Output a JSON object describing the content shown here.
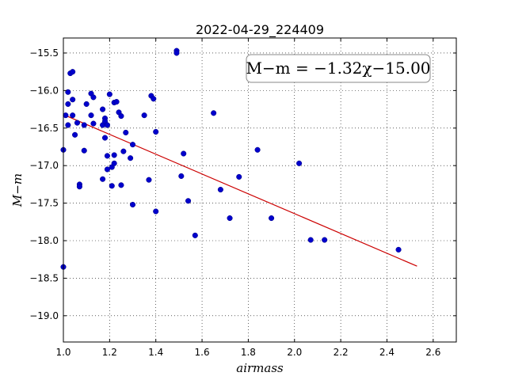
{
  "chart_data": {
    "type": "scatter",
    "title": "2022-04-29_224409",
    "xlabel": "airmass",
    "ylabel": "M−m",
    "xlim": [
      1.0,
      2.7
    ],
    "ylim": [
      -19.35,
      -15.3
    ],
    "y_inverted": true,
    "grid": true,
    "x_ticks": [
      1.0,
      1.2,
      1.4,
      1.6,
      1.8,
      2.0,
      2.2,
      2.4,
      2.6
    ],
    "x_tick_labels": [
      "1.0",
      "1.2",
      "1.4",
      "1.6",
      "1.8",
      "2.0",
      "2.2",
      "2.4",
      "2.6"
    ],
    "y_ticks": [
      -15.5,
      -16.0,
      -16.5,
      -17.0,
      -17.5,
      -18.0,
      -18.5,
      -19.0
    ],
    "y_tick_labels": [
      "−15.5",
      "−16.0",
      "−16.5",
      "−17.0",
      "−17.5",
      "−18.0",
      "−18.5",
      "−19.0"
    ],
    "annotation": "M−m = −1.32χ−15.00",
    "annotation_placement": "top-right",
    "marker_color": "#0000cc",
    "fit_color": "#cc0000",
    "fit": {
      "slope": -1.32,
      "intercept": -15.0,
      "x_range": [
        1.0,
        2.53
      ]
    },
    "points": [
      {
        "x": 1.0,
        "y": -16.79
      },
      {
        "x": 1.0,
        "y": -18.35
      },
      {
        "x": 1.01,
        "y": -16.33
      },
      {
        "x": 1.02,
        "y": -16.02
      },
      {
        "x": 1.02,
        "y": -16.18
      },
      {
        "x": 1.02,
        "y": -16.46
      },
      {
        "x": 1.03,
        "y": -15.77
      },
      {
        "x": 1.04,
        "y": -15.75
      },
      {
        "x": 1.04,
        "y": -16.33
      },
      {
        "x": 1.04,
        "y": -16.12
      },
      {
        "x": 1.05,
        "y": -16.59
      },
      {
        "x": 1.06,
        "y": -16.43
      },
      {
        "x": 1.07,
        "y": -17.25
      },
      {
        "x": 1.07,
        "y": -17.28
      },
      {
        "x": 1.09,
        "y": -16.46
      },
      {
        "x": 1.09,
        "y": -16.8
      },
      {
        "x": 1.1,
        "y": -16.18
      },
      {
        "x": 1.12,
        "y": -16.04
      },
      {
        "x": 1.12,
        "y": -16.33
      },
      {
        "x": 1.13,
        "y": -16.09
      },
      {
        "x": 1.13,
        "y": -16.44
      },
      {
        "x": 1.17,
        "y": -16.25
      },
      {
        "x": 1.17,
        "y": -16.46
      },
      {
        "x": 1.17,
        "y": -17.18
      },
      {
        "x": 1.18,
        "y": -16.37
      },
      {
        "x": 1.18,
        "y": -16.41
      },
      {
        "x": 1.18,
        "y": -16.63
      },
      {
        "x": 1.19,
        "y": -16.46
      },
      {
        "x": 1.19,
        "y": -16.87
      },
      {
        "x": 1.19,
        "y": -17.05
      },
      {
        "x": 1.2,
        "y": -16.05
      },
      {
        "x": 1.21,
        "y": -17.02
      },
      {
        "x": 1.21,
        "y": -17.27
      },
      {
        "x": 1.22,
        "y": -16.16
      },
      {
        "x": 1.22,
        "y": -16.97
      },
      {
        "x": 1.22,
        "y": -16.86
      },
      {
        "x": 1.23,
        "y": -16.15
      },
      {
        "x": 1.24,
        "y": -16.29
      },
      {
        "x": 1.25,
        "y": -16.34
      },
      {
        "x": 1.25,
        "y": -17.26
      },
      {
        "x": 1.26,
        "y": -16.81
      },
      {
        "x": 1.27,
        "y": -16.56
      },
      {
        "x": 1.29,
        "y": -16.9
      },
      {
        "x": 1.3,
        "y": -16.72
      },
      {
        "x": 1.3,
        "y": -17.52
      },
      {
        "x": 1.35,
        "y": -16.33
      },
      {
        "x": 1.37,
        "y": -17.19
      },
      {
        "x": 1.38,
        "y": -16.07
      },
      {
        "x": 1.39,
        "y": -16.11
      },
      {
        "x": 1.4,
        "y": -16.55
      },
      {
        "x": 1.4,
        "y": -17.61
      },
      {
        "x": 1.49,
        "y": -15.47
      },
      {
        "x": 1.49,
        "y": -15.5
      },
      {
        "x": 1.51,
        "y": -17.14
      },
      {
        "x": 1.52,
        "y": -16.84
      },
      {
        "x": 1.54,
        "y": -17.47
      },
      {
        "x": 1.57,
        "y": -17.93
      },
      {
        "x": 1.65,
        "y": -16.3
      },
      {
        "x": 1.68,
        "y": -17.32
      },
      {
        "x": 1.72,
        "y": -17.7
      },
      {
        "x": 1.76,
        "y": -17.15
      },
      {
        "x": 1.84,
        "y": -16.79
      },
      {
        "x": 1.9,
        "y": -17.7
      },
      {
        "x": 2.02,
        "y": -16.97
      },
      {
        "x": 2.07,
        "y": -17.99
      },
      {
        "x": 2.13,
        "y": -17.99
      },
      {
        "x": 2.45,
        "y": -18.12
      }
    ]
  }
}
